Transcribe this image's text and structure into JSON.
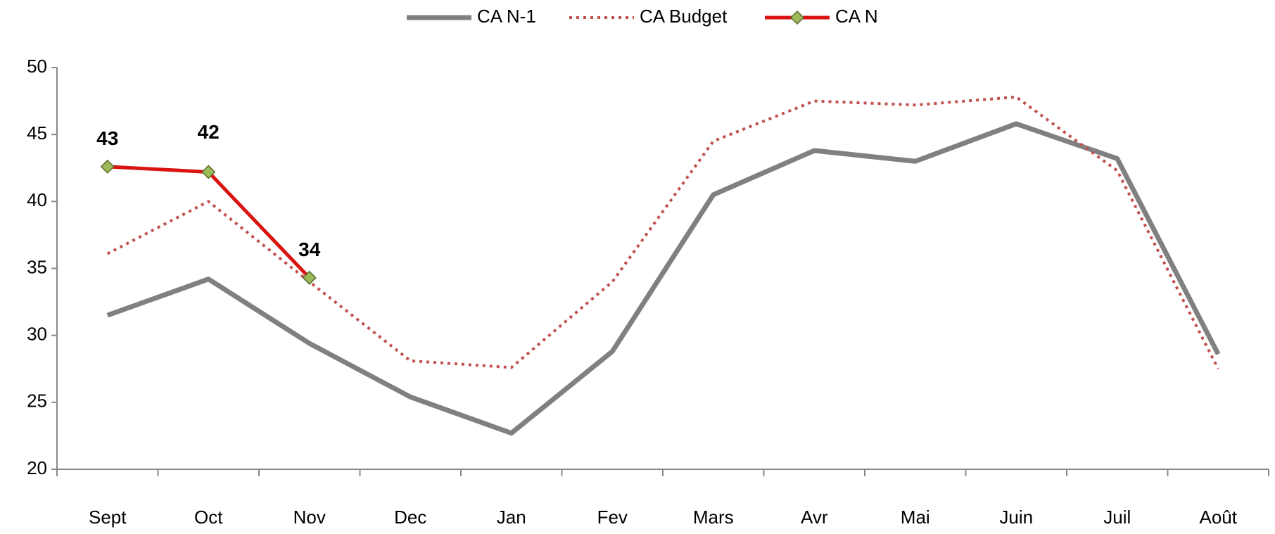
{
  "chart_data": {
    "type": "line",
    "categories": [
      "Sept",
      "Oct",
      "Nov",
      "Dec",
      "Jan",
      "Fev",
      "Mars",
      "Avr",
      "Mai",
      "Juin",
      "Juil",
      "Août"
    ],
    "series": [
      {
        "name": "CA N-1",
        "color": "#808080",
        "style": "solid",
        "values": [
          31.5,
          34.2,
          29.4,
          25.4,
          22.7,
          28.8,
          40.5,
          43.8,
          43.0,
          45.8,
          43.2,
          28.6
        ]
      },
      {
        "name": "CA Budget",
        "color": "#c0504d",
        "style": "dotted",
        "values": [
          36.1,
          40.0,
          34.0,
          28.1,
          27.6,
          34.0,
          44.5,
          47.5,
          47.2,
          47.8,
          42.3,
          27.5
        ]
      },
      {
        "name": "CA N",
        "color": "#d9130f",
        "style": "solid",
        "marker": "diamond",
        "marker_color": "#9bbb59",
        "values": [
          42.6,
          42.2,
          34.3,
          null,
          null,
          null,
          null,
          null,
          null,
          null,
          null,
          null
        ],
        "value_labels": [
          "43",
          "42",
          "34",
          null,
          null,
          null,
          null,
          null,
          null,
          null,
          null,
          null
        ]
      }
    ],
    "ylim": [
      20,
      50
    ],
    "yticks": [
      20,
      25,
      30,
      35,
      40,
      45,
      50
    ],
    "grid": false,
    "legend": "top"
  }
}
